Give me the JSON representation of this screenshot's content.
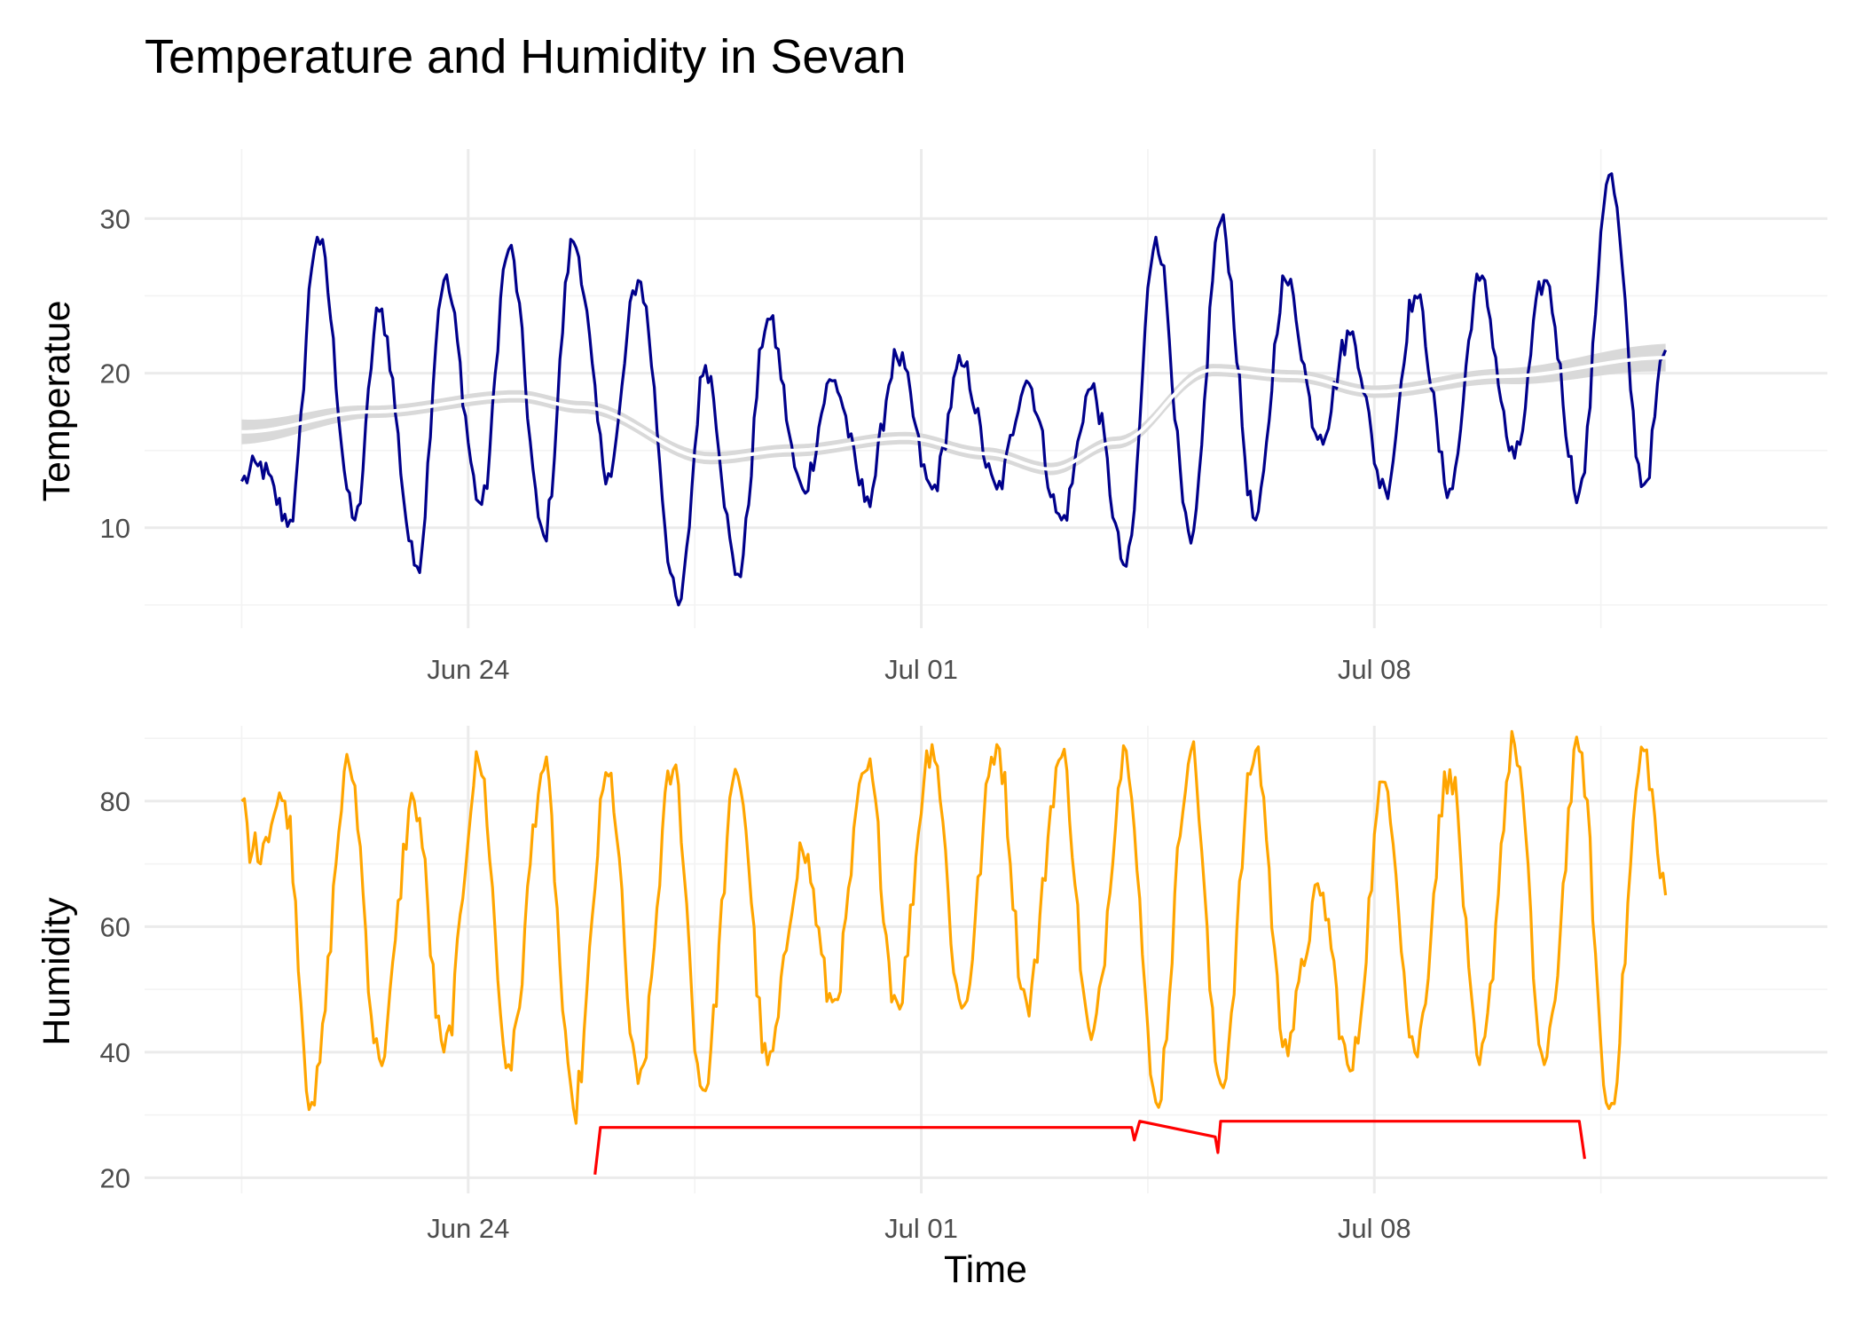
{
  "chart_data": {
    "title": "Temperature and Humidity in Sevan",
    "panels": [
      {
        "type": "line",
        "ylabel": "Temperatue",
        "xlabel": "",
        "xlim": [
          "2024-06-19T00:00",
          "2024-07-15T00:00"
        ],
        "ylim": [
          3.5,
          34.5
        ],
        "x_ticks": [
          "Jun 24",
          "Jul 01",
          "Jul 08"
        ],
        "x_tick_dates": [
          "2024-06-24",
          "2024-07-01",
          "2024-07-08"
        ],
        "y_ticks": [
          10,
          20,
          30
        ],
        "grid": true,
        "series": [
          {
            "color": "#00008B",
            "keypoints": [
              [
                "2024-06-20T12:00",
                13.0
              ],
              [
                "2024-06-20T18:00",
                14.0
              ],
              [
                "2024-06-21T06:00",
                10.5
              ],
              [
                "2024-06-21T16:00",
                28.8
              ],
              [
                "2024-06-22T06:00",
                10.5
              ],
              [
                "2024-06-22T15:00",
                24.0
              ],
              [
                "2024-06-23T05:00",
                7.5
              ],
              [
                "2024-06-23T15:00",
                26.0
              ],
              [
                "2024-06-24T05:00",
                11.5
              ],
              [
                "2024-06-24T15:00",
                28.0
              ],
              [
                "2024-06-25T04:00",
                9.5
              ],
              [
                "2024-06-25T15:00",
                28.5
              ],
              [
                "2024-06-26T04:00",
                13.5
              ],
              [
                "2024-06-26T15:00",
                26.0
              ],
              [
                "2024-06-27T06:00",
                5.0
              ],
              [
                "2024-06-27T16:00",
                20.5
              ],
              [
                "2024-06-28T04:00",
                7.0
              ],
              [
                "2024-06-28T15:00",
                23.5
              ],
              [
                "2024-06-29T04:00",
                12.5
              ],
              [
                "2024-06-29T15:00",
                19.5
              ],
              [
                "2024-06-30T04:00",
                12.0
              ],
              [
                "2024-06-30T15:00",
                21.0
              ],
              [
                "2024-07-01T04:00",
                12.5
              ],
              [
                "2024-07-01T15:00",
                20.5
              ],
              [
                "2024-07-02T04:00",
                12.5
              ],
              [
                "2024-07-02T15:00",
                19.5
              ],
              [
                "2024-07-03T04:00",
                10.5
              ],
              [
                "2024-07-03T15:00",
                19.0
              ],
              [
                "2024-07-04T04:00",
                7.5
              ],
              [
                "2024-07-04T15:00",
                28.8
              ],
              [
                "2024-07-05T04:00",
                9.0
              ],
              [
                "2024-07-05T15:00",
                29.8
              ],
              [
                "2024-07-06T04:00",
                10.5
              ],
              [
                "2024-07-06T15:00",
                26.0
              ],
              [
                "2024-07-07T04:00",
                16.0
              ],
              [
                "2024-07-07T15:00",
                22.5
              ],
              [
                "2024-07-08T04:00",
                12.5
              ],
              [
                "2024-07-08T15:00",
                25.0
              ],
              [
                "2024-07-09T04:00",
                12.5
              ],
              [
                "2024-07-09T15:00",
                26.0
              ],
              [
                "2024-07-10T04:00",
                14.5
              ],
              [
                "2024-07-10T15:00",
                26.0
              ],
              [
                "2024-07-11T04:00",
                12.3
              ],
              [
                "2024-07-11T15:00",
                32.8
              ],
              [
                "2024-07-12T04:00",
                12.8
              ],
              [
                "2024-07-12T12:00",
                21.5
              ]
            ]
          },
          {
            "type": "smooth",
            "color": "#ffffff",
            "band_color": "#d9d9d9",
            "keypoints": [
              [
                "2024-06-20T12:00",
                16.2
              ],
              [
                "2024-06-22T12:00",
                17.5
              ],
              [
                "2024-06-24T18:00",
                18.5
              ],
              [
                "2024-06-25T18:00",
                17.8
              ],
              [
                "2024-06-27T18:00",
                14.5
              ],
              [
                "2024-06-29T00:00",
                15.0
              ],
              [
                "2024-06-30T18:00",
                15.8
              ],
              [
                "2024-07-02T00:00",
                14.8
              ],
              [
                "2024-07-03T00:00",
                13.8
              ],
              [
                "2024-07-04T00:00",
                15.5
              ],
              [
                "2024-07-05T12:00",
                20.2
              ],
              [
                "2024-07-06T18:00",
                19.8
              ],
              [
                "2024-07-08T00:00",
                18.8
              ],
              [
                "2024-07-10T00:00",
                19.8
              ],
              [
                "2024-07-12T12:00",
                21.0
              ]
            ],
            "band_halfwidth": [
              0.8,
              0.4,
              0.4,
              0.4,
              0.4,
              0.4,
              0.4,
              0.4,
              0.4,
              0.4,
              0.4,
              0.4,
              0.4,
              0.5,
              0.9
            ]
          }
        ]
      },
      {
        "type": "line",
        "ylabel": "Humidity",
        "xlabel": "Time",
        "xlim": [
          "2024-06-19T00:00",
          "2024-07-15T00:00"
        ],
        "ylim": [
          17.5,
          92.0
        ],
        "x_ticks": [
          "Jun 24",
          "Jul 01",
          "Jul 08"
        ],
        "x_tick_dates": [
          "2024-06-24",
          "2024-07-01",
          "2024-07-08"
        ],
        "y_ticks": [
          20,
          40,
          60,
          80
        ],
        "grid": true,
        "series": [
          {
            "color": "#FFA500",
            "keypoints": [
              [
                "2024-06-20T12:00",
                80.0
              ],
              [
                "2024-06-20T16:00",
                72.0
              ],
              [
                "2024-06-21T04:00",
                80.0
              ],
              [
                "2024-06-21T14:00",
                32.0
              ],
              [
                "2024-06-22T04:00",
                85.5
              ],
              [
                "2024-06-22T15:00",
                39.0
              ],
              [
                "2024-06-23T04:00",
                80.0
              ],
              [
                "2024-06-23T15:00",
                40.0
              ],
              [
                "2024-06-24T04:00",
                86.0
              ],
              [
                "2024-06-24T15:00",
                38.0
              ],
              [
                "2024-06-25T04:00",
                85.0
              ],
              [
                "2024-06-25T15:00",
                31.0
              ],
              [
                "2024-06-26T04:00",
                84.0
              ],
              [
                "2024-06-26T15:00",
                35.0
              ],
              [
                "2024-06-27T04:00",
                85.0
              ],
              [
                "2024-06-27T15:00",
                34.0
              ],
              [
                "2024-06-28T04:00",
                84.0
              ],
              [
                "2024-06-28T15:00",
                38.0
              ],
              [
                "2024-06-29T04:00",
                72.0
              ],
              [
                "2024-06-29T15:00",
                48.0
              ],
              [
                "2024-06-30T04:00",
                85.0
              ],
              [
                "2024-06-30T15:00",
                48.0
              ],
              [
                "2024-07-01T04:00",
                89.0
              ],
              [
                "2024-07-01T15:00",
                47.0
              ],
              [
                "2024-07-02T04:00",
                89.0
              ],
              [
                "2024-07-02T15:00",
                48.0
              ],
              [
                "2024-07-03T04:00",
                87.0
              ],
              [
                "2024-07-03T15:00",
                42.0
              ],
              [
                "2024-07-04T04:00",
                88.0
              ],
              [
                "2024-07-04T15:00",
                32.0
              ],
              [
                "2024-07-05T04:00",
                88.0
              ],
              [
                "2024-07-05T15:00",
                35.0
              ],
              [
                "2024-07-06T04:00",
                88.0
              ],
              [
                "2024-07-06T15:00",
                42.0
              ],
              [
                "2024-07-07T04:00",
                65.0
              ],
              [
                "2024-07-07T15:00",
                37.0
              ],
              [
                "2024-07-08T04:00",
                83.0
              ],
              [
                "2024-07-08T15:00",
                40.0
              ],
              [
                "2024-07-09T04:00",
                85.0
              ],
              [
                "2024-07-09T15:00",
                38.0
              ],
              [
                "2024-07-10T04:00",
                89.0
              ],
              [
                "2024-07-10T15:00",
                38.0
              ],
              [
                "2024-07-11T04:00",
                88.0
              ],
              [
                "2024-07-11T15:00",
                31.0
              ],
              [
                "2024-07-12T04:00",
                88.0
              ],
              [
                "2024-07-12T12:00",
                65.0
              ]
            ]
          },
          {
            "color": "#FF0000",
            "keypoints": [
              [
                "2024-06-25T23:00",
                20.5
              ],
              [
                "2024-06-26T01:00",
                28.0
              ],
              [
                "2024-07-04T06:00",
                28.0
              ],
              [
                "2024-07-04T07:00",
                26.0
              ],
              [
                "2024-07-04T09:00",
                29.0
              ],
              [
                "2024-07-05T13:00",
                26.5
              ],
              [
                "2024-07-05T14:00",
                24.0
              ],
              [
                "2024-07-05T15:00",
                29.0
              ],
              [
                "2024-07-11T04:00",
                29.0
              ],
              [
                "2024-07-11T06:00",
                23.0
              ]
            ]
          }
        ]
      }
    ]
  }
}
